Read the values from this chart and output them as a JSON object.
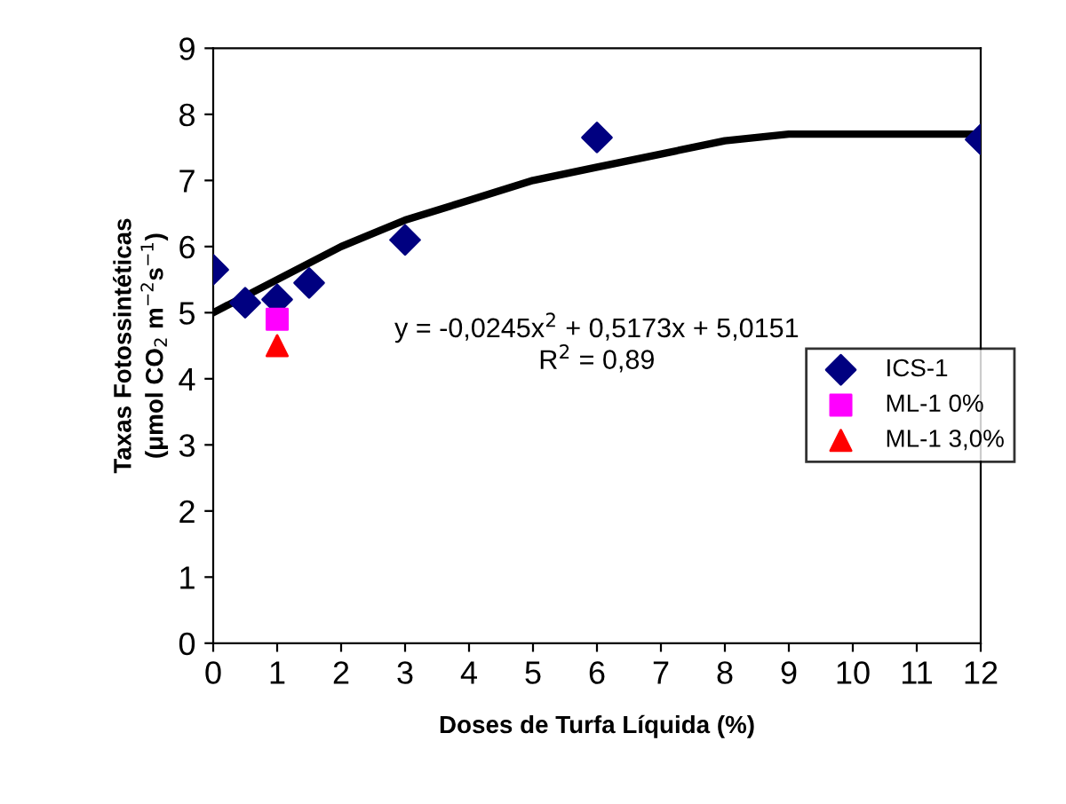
{
  "chart_data": {
    "type": "scatter",
    "xlabel": "Doses de Turfa Líquida (%)",
    "ylabel": "Taxas Fotossintéticas\n(μmol CO$_{2}$ m$^{−2}$s$^{−1}$)",
    "xlim": [
      0,
      12
    ],
    "xticks": [
      0,
      1,
      2,
      3,
      4,
      5,
      6,
      7,
      8,
      9,
      10,
      11,
      12
    ],
    "ylim": [
      0,
      9
    ],
    "yticks": [
      0,
      1,
      2,
      3,
      4,
      5,
      6,
      7,
      8,
      9
    ],
    "grid": false,
    "legend": "right",
    "series": [
      {
        "type": "line",
        "color": "#000000",
        "line_style": "solid",
        "marker": "none",
        "x": [
          0,
          1,
          2,
          3,
          4,
          5,
          6,
          7,
          8,
          9,
          10,
          11,
          12
        ],
        "values": [
          5.0,
          5.5,
          6.0,
          6.4,
          6.7,
          7.0,
          7.2,
          7.4,
          7.6,
          7.7,
          7.7,
          7.7,
          7.7
        ]
      },
      {
        "name": "ICS-1",
        "color": "#000080",
        "marker": "diamond",
        "x": [
          0,
          0.5,
          1,
          1.5,
          3,
          6,
          12
        ],
        "values": [
          5.65,
          5.15,
          5.2,
          5.45,
          6.1,
          7.65,
          7.62
        ]
      },
      {
        "name": "ML-1 0%",
        "color": "#ff00ff",
        "marker": "square",
        "x": [
          1
        ],
        "values": [
          4.9
        ]
      },
      {
        "name": "ML-1 3,0%",
        "color": "#ff0000",
        "marker": "triangle",
        "x": [
          1
        ],
        "values": [
          4.5
        ]
      }
    ],
    "annotations": [
      "y = -0,0245x$^{2}$ + 0,5173x + 5,0151",
      "R$^{2}$ = 0,89"
    ]
  }
}
